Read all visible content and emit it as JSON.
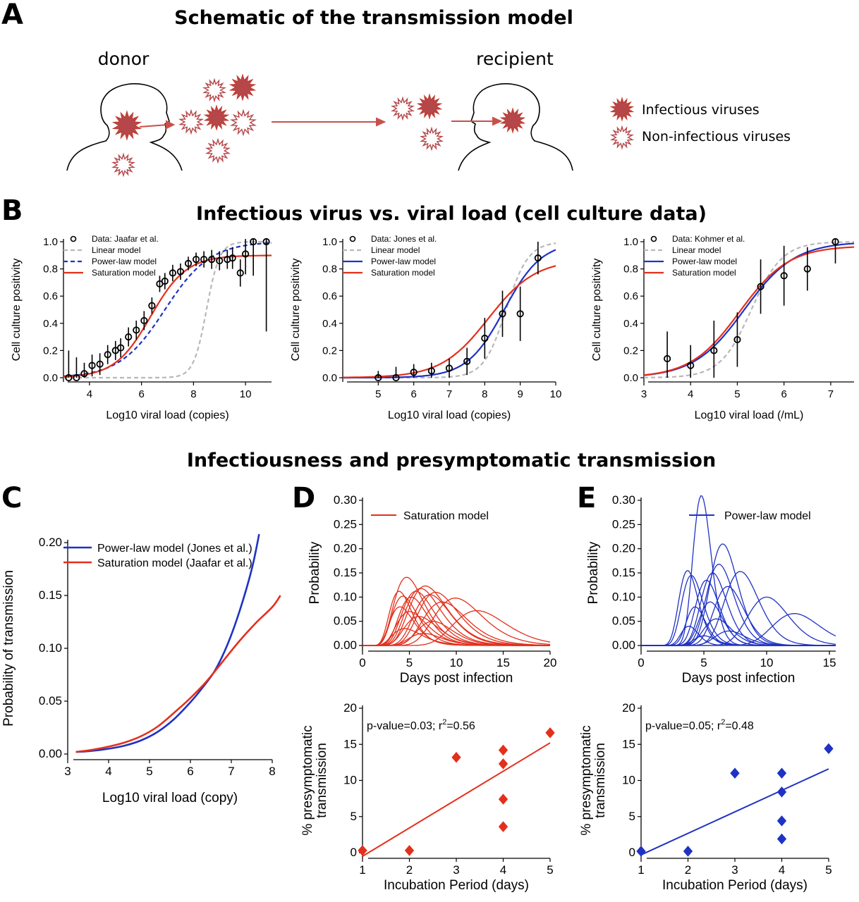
{
  "panel_letters": {
    "a": "A",
    "b": "B",
    "c": "C",
    "d": "D",
    "e": "E"
  },
  "section_titles": {
    "a": "Schematic of the transmission model",
    "b": "Infectious virus vs. viral load (cell culture data)",
    "c": "Infectiousness and presymptomatic transmission"
  },
  "schematic": {
    "donor": "donor",
    "recipient": "recipient",
    "legend_infectious": "Infectious viruses",
    "legend_noninfectious": "Non-infectious viruses"
  },
  "colors": {
    "red": "#e3301c",
    "blue": "#1f32c4",
    "gray": "#b8b8b8",
    "virus_fill": "#b5474a",
    "virus_stroke": "#c0392b",
    "arrow": "#c9504a"
  },
  "chart_data": [
    {
      "id": "B1",
      "type": "scatter",
      "xlabel": "Log10 viral load (copies)",
      "ylabel": "Cell culture positivity",
      "xlim": [
        3,
        11
      ],
      "ylim": [
        0,
        1
      ],
      "xticks": [
        4,
        6,
        8,
        10
      ],
      "yticks": [
        "0.0",
        "0.2",
        "0.4",
        "0.6",
        "0.8",
        "1.0"
      ],
      "legend": [
        "Data: Jaafar et al.",
        "Linear model",
        "Power-law model",
        "Saturation model"
      ],
      "data": {
        "x": [
          3.2,
          3.5,
          3.8,
          4.1,
          4.4,
          4.7,
          5.0,
          5.2,
          5.5,
          5.8,
          6.1,
          6.4,
          6.7,
          6.9,
          7.2,
          7.5,
          7.8,
          8.1,
          8.4,
          8.7,
          9.0,
          9.3,
          9.5,
          9.8,
          10.0,
          10.3,
          10.8
        ],
        "y": [
          0.0,
          0.0,
          0.03,
          0.09,
          0.1,
          0.17,
          0.2,
          0.22,
          0.3,
          0.35,
          0.42,
          0.53,
          0.69,
          0.71,
          0.77,
          0.78,
          0.84,
          0.87,
          0.87,
          0.87,
          0.86,
          0.87,
          0.88,
          0.77,
          0.91,
          1.0,
          1.0
        ],
        "err": [
          0.2,
          0.15,
          0.08,
          0.08,
          0.08,
          0.07,
          0.07,
          0.07,
          0.07,
          0.07,
          0.07,
          0.06,
          0.06,
          0.06,
          0.06,
          0.06,
          0.05,
          0.05,
          0.06,
          0.07,
          0.07,
          0.07,
          0.08,
          0.1,
          0.15,
          0.25,
          0.66
        ]
      },
      "models": [
        {
          "name": "Linear model",
          "color": "gray",
          "style": "dash",
          "k": 4.0,
          "x0": 8.5,
          "top": 1.0
        },
        {
          "name": "Power-law model",
          "color": "blue",
          "style": "dash",
          "k": 1.15,
          "x0": 6.9,
          "top": 1.0
        },
        {
          "name": "Saturation model",
          "color": "red",
          "style": "solid",
          "k": 1.45,
          "x0": 6.35,
          "top": 0.9
        }
      ]
    },
    {
      "id": "B2",
      "type": "scatter",
      "xlabel": "Log10 viral load (copies)",
      "ylabel": "Cell culture positivity",
      "xlim": [
        4,
        10
      ],
      "ylim": [
        0,
        1
      ],
      "xticks": [
        5,
        6,
        7,
        8,
        9,
        10
      ],
      "yticks": [
        "0.0",
        "0.2",
        "0.4",
        "0.6",
        "0.8",
        "1.0"
      ],
      "legend": [
        "Data: Jones et al.",
        "Linear model",
        "Power-law model",
        "Saturation model"
      ],
      "data": {
        "x": [
          5.0,
          5.5,
          6.0,
          6.5,
          7.0,
          7.5,
          8.0,
          8.5,
          9.0,
          9.5
        ],
        "y": [
          0.0,
          0.0,
          0.04,
          0.05,
          0.07,
          0.12,
          0.29,
          0.47,
          0.47,
          0.88
        ],
        "err": [
          0.05,
          0.08,
          0.06,
          0.06,
          0.07,
          0.1,
          0.15,
          0.17,
          0.2,
          0.12
        ]
      },
      "models": [
        {
          "name": "Linear model",
          "color": "gray",
          "style": "dash",
          "k": 3.2,
          "x0": 8.6,
          "top": 1.0
        },
        {
          "name": "Power-law model",
          "color": "blue",
          "style": "solid",
          "k": 1.9,
          "x0": 8.55,
          "top": 1.0
        },
        {
          "name": "Saturation model",
          "color": "red",
          "style": "solid",
          "k": 1.5,
          "x0": 8.1,
          "top": 0.87
        }
      ]
    },
    {
      "id": "B3",
      "type": "scatter",
      "xlabel": "Log10 viral load (/mL)",
      "ylabel": "Cell culture positivity",
      "xlim": [
        3,
        7.5
      ],
      "ylim": [
        0,
        1
      ],
      "xticks": [
        3,
        4,
        5,
        6,
        7
      ],
      "yticks": [
        "0.0",
        "0.2",
        "0.4",
        "0.6",
        "0.8",
        "1.0"
      ],
      "legend": [
        "Data: Kohmer et al.",
        "Linear model",
        "Power-law model",
        "Saturation model"
      ],
      "data": {
        "x": [
          3.5,
          4.0,
          4.5,
          5.0,
          5.5,
          6.0,
          6.5,
          7.1
        ],
        "y": [
          0.14,
          0.09,
          0.2,
          0.28,
          0.67,
          0.75,
          0.8,
          1.0
        ],
        "err": [
          0.2,
          0.15,
          0.22,
          0.2,
          0.2,
          0.22,
          0.16,
          0.16
        ]
      },
      "models": [
        {
          "name": "Linear model",
          "color": "gray",
          "style": "dash",
          "k": 3.0,
          "x0": 5.3,
          "top": 1.0
        },
        {
          "name": "Power-law model",
          "color": "blue",
          "style": "solid",
          "k": 1.85,
          "x0": 5.15,
          "top": 1.0
        },
        {
          "name": "Saturation model",
          "color": "red",
          "style": "solid",
          "k": 1.9,
          "x0": 5.05,
          "top": 0.97
        }
      ]
    },
    {
      "id": "C",
      "type": "line",
      "xlabel": "Log10 viral load (copy)",
      "ylabel": "Probability of transmission",
      "xlim": [
        3,
        8
      ],
      "ylim": [
        0,
        0.2
      ],
      "xticks": [
        3,
        4,
        5,
        6,
        7,
        8
      ],
      "yticks": [
        "0.00",
        "0.05",
        "0.10",
        "0.15",
        "0.20"
      ],
      "series": [
        {
          "name": "Power-law model (Jones et al.)",
          "color": "blue",
          "x": [
            3.2,
            3.6,
            4.0,
            4.4,
            4.8,
            5.2,
            5.6,
            6.0,
            6.3,
            6.6,
            6.9,
            7.2,
            7.5,
            7.68
          ],
          "y": [
            0.002,
            0.003,
            0.005,
            0.008,
            0.013,
            0.021,
            0.033,
            0.049,
            0.063,
            0.079,
            0.103,
            0.135,
            0.175,
            0.208
          ]
        },
        {
          "name": "Saturation model (Jaafar et al.)",
          "color": "red",
          "x": [
            3.2,
            3.6,
            4.0,
            4.4,
            4.8,
            5.2,
            5.6,
            6.0,
            6.4,
            6.8,
            7.2,
            7.6,
            8.0,
            8.2
          ],
          "y": [
            0.002,
            0.004,
            0.007,
            0.011,
            0.017,
            0.026,
            0.039,
            0.053,
            0.069,
            0.088,
            0.107,
            0.124,
            0.139,
            0.15
          ]
        }
      ]
    },
    {
      "id": "D-top",
      "type": "line",
      "xlabel": "Days post infection",
      "ylabel": "Probability",
      "xlim": [
        0,
        20
      ],
      "ylim": [
        0,
        0.3
      ],
      "xticks": [
        0,
        5,
        10,
        15,
        20
      ],
      "yticks": [
        "0.00",
        "0.05",
        "0.10",
        "0.15",
        "0.20",
        "0.25",
        "0.30"
      ],
      "legend": "Saturation model",
      "color": "red",
      "peaks": [
        {
          "t": 3.9,
          "h": 0.112,
          "w": 1.4
        },
        {
          "t": 4.3,
          "h": 0.102,
          "w": 1.6
        },
        {
          "t": 4.7,
          "h": 0.141,
          "w": 1.9
        },
        {
          "t": 5.2,
          "h": 0.1,
          "w": 1.8
        },
        {
          "t": 5.7,
          "h": 0.112,
          "w": 2.0
        },
        {
          "t": 6.2,
          "h": 0.118,
          "w": 2.2
        },
        {
          "t": 6.7,
          "h": 0.123,
          "w": 2.4
        },
        {
          "t": 7.2,
          "h": 0.105,
          "w": 2.3
        },
        {
          "t": 7.8,
          "h": 0.11,
          "w": 2.5
        },
        {
          "t": 8.5,
          "h": 0.09,
          "w": 2.7
        },
        {
          "t": 9.9,
          "h": 0.098,
          "w": 3.0
        },
        {
          "t": 12.2,
          "h": 0.072,
          "w": 3.3
        },
        {
          "t": 5.0,
          "h": 0.07,
          "w": 1.9
        },
        {
          "t": 6.0,
          "h": 0.06,
          "w": 2.1
        },
        {
          "t": 7.5,
          "h": 0.05,
          "w": 2.2
        },
        {
          "t": 4.5,
          "h": 0.035,
          "w": 1.8
        },
        {
          "t": 6.5,
          "h": 0.025,
          "w": 2.0
        },
        {
          "t": 4.0,
          "h": 0.08,
          "w": 1.5
        }
      ]
    },
    {
      "id": "E-top",
      "type": "line",
      "xlabel": "Days post infection",
      "ylabel": "Probability",
      "xlim": [
        0,
        15.5
      ],
      "ylim": [
        0,
        0.3
      ],
      "xticks": [
        0,
        5,
        10,
        15
      ],
      "yticks": [
        "0.00",
        "0.05",
        "0.10",
        "0.15",
        "0.20",
        "0.25",
        "0.30"
      ],
      "legend": "Power-law model",
      "color": "blue",
      "peaks": [
        {
          "t": 3.7,
          "h": 0.155,
          "w": 0.9
        },
        {
          "t": 4.0,
          "h": 0.145,
          "w": 1.0
        },
        {
          "t": 4.8,
          "h": 0.31,
          "w": 0.85
        },
        {
          "t": 5.2,
          "h": 0.135,
          "w": 1.1
        },
        {
          "t": 5.7,
          "h": 0.15,
          "w": 1.2
        },
        {
          "t": 6.2,
          "h": 0.168,
          "w": 1.3
        },
        {
          "t": 6.5,
          "h": 0.21,
          "w": 1.3
        },
        {
          "t": 6.9,
          "h": 0.122,
          "w": 1.4
        },
        {
          "t": 7.9,
          "h": 0.153,
          "w": 1.6
        },
        {
          "t": 10.0,
          "h": 0.1,
          "w": 1.9
        },
        {
          "t": 12.2,
          "h": 0.066,
          "w": 2.2
        },
        {
          "t": 4.3,
          "h": 0.08,
          "w": 0.9
        },
        {
          "t": 5.5,
          "h": 0.09,
          "w": 1.1
        },
        {
          "t": 6.0,
          "h": 0.055,
          "w": 1.3
        },
        {
          "t": 3.8,
          "h": 0.04,
          "w": 0.8
        },
        {
          "t": 7.0,
          "h": 0.03,
          "w": 1.4
        },
        {
          "t": 5.0,
          "h": 0.02,
          "w": 1.0
        }
      ]
    },
    {
      "id": "D-bottom",
      "type": "scatter",
      "xlabel": "Incubation Period (days)",
      "ylabel": [
        "% presymptomatic",
        "transmission"
      ],
      "xlim": [
        1,
        5
      ],
      "ylim": [
        0,
        20
      ],
      "xticks": [
        1,
        2,
        3,
        4,
        5
      ],
      "yticks": [
        "0",
        "5",
        "10",
        "15",
        "20"
      ],
      "annotation": {
        "pre": "p-value=0.03; r",
        "sup": "2",
        "post": "=0.56"
      },
      "color": "red",
      "points": {
        "x": [
          1,
          2,
          3,
          4,
          4,
          4,
          4,
          5
        ],
        "y": [
          0.3,
          0.3,
          13.2,
          14.2,
          12.3,
          7.4,
          3.6,
          16.6
        ]
      },
      "fit": {
        "x": [
          1,
          5
        ],
        "y": [
          -0.5,
          15.2
        ]
      }
    },
    {
      "id": "E-bottom",
      "type": "scatter",
      "xlabel": "Incubation Period (days)",
      "ylabel": [
        "% presymptomatic",
        "transmission"
      ],
      "xlim": [
        1,
        5
      ],
      "ylim": [
        0,
        20
      ],
      "xticks": [
        1,
        2,
        3,
        4,
        5
      ],
      "yticks": [
        "0",
        "5",
        "10",
        "15",
        "20"
      ],
      "annotation": {
        "pre": "p-value=0.05; r",
        "sup": "2",
        "post": "=0.48"
      },
      "color": "blue",
      "points": {
        "x": [
          1,
          2,
          3,
          4,
          4,
          4,
          4,
          5
        ],
        "y": [
          0.2,
          0.2,
          11.0,
          11.0,
          8.4,
          4.4,
          1.9,
          14.4
        ]
      },
      "fit": {
        "x": [
          1,
          5
        ],
        "y": [
          -0.3,
          11.6
        ]
      }
    }
  ]
}
